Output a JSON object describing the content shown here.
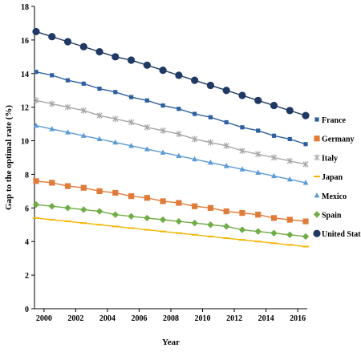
{
  "chart_data": {
    "type": "line",
    "xlabel": "Year",
    "ylabel": "Gap  to the optimal rate (%)",
    "xlim": [
      1999.4,
      2016.6
    ],
    "ylim": [
      0,
      18
    ],
    "x_ticks": [
      2000,
      2002,
      2004,
      2006,
      2008,
      2010,
      2012,
      2014,
      2016
    ],
    "x_tick_labels": [
      "2000",
      "2002",
      "2004",
      "2006",
      "2008",
      "2010",
      "2012",
      "2014",
      "2016"
    ],
    "y_ticks": [
      0,
      2,
      4,
      6,
      8,
      10,
      12,
      14,
      16,
      18
    ],
    "y_tick_labels": [
      "0",
      "2",
      "4",
      "6",
      "8",
      "10",
      "12",
      "14",
      "16",
      "18"
    ],
    "x": [
      1999.5,
      2000.5,
      2001.5,
      2002.5,
      2003.5,
      2004.5,
      2005.5,
      2006.5,
      2007.5,
      2008.5,
      2009.5,
      2010.5,
      2011.5,
      2012.5,
      2013.5,
      2014.5,
      2015.5,
      2016.5
    ],
    "legend_position": "right",
    "grid": false,
    "series": [
      {
        "name": "France",
        "color": "#2e5f9e",
        "marker": "square-small",
        "values": [
          14.1,
          13.9,
          13.6,
          13.4,
          13.1,
          12.9,
          12.6,
          12.4,
          12.1,
          11.9,
          11.6,
          11.4,
          11.1,
          10.8,
          10.6,
          10.3,
          10.1,
          9.8
        ]
      },
      {
        "name": "Germany",
        "color": "#e07b39",
        "marker": "square",
        "values": [
          7.6,
          7.5,
          7.3,
          7.2,
          7.0,
          6.9,
          6.7,
          6.6,
          6.4,
          6.3,
          6.1,
          6.0,
          5.8,
          5.7,
          5.6,
          5.4,
          5.3,
          5.2
        ]
      },
      {
        "name": "Italy",
        "color": "#a6a6a6",
        "marker": "asterisk",
        "values": [
          12.4,
          12.2,
          12.0,
          11.8,
          11.5,
          11.3,
          11.1,
          10.8,
          10.6,
          10.4,
          10.1,
          9.9,
          9.7,
          9.4,
          9.2,
          9.0,
          8.8,
          8.6
        ]
      },
      {
        "name": "Japan",
        "color": "#f2b705",
        "marker": "dash",
        "values": [
          5.4,
          5.3,
          5.2,
          5.1,
          5.0,
          4.9,
          4.8,
          4.7,
          4.6,
          4.5,
          4.4,
          4.3,
          4.2,
          4.1,
          4.0,
          3.9,
          3.8,
          3.7
        ]
      },
      {
        "name": "Mexico",
        "color": "#5b9bd5",
        "marker": "triangle",
        "values": [
          10.9,
          10.7,
          10.5,
          10.3,
          10.1,
          9.9,
          9.7,
          9.5,
          9.3,
          9.1,
          8.9,
          8.7,
          8.5,
          8.3,
          8.1,
          7.9,
          7.7,
          7.5
        ]
      },
      {
        "name": "Spain",
        "color": "#70ad47",
        "marker": "diamond",
        "values": [
          6.2,
          6.1,
          6.0,
          5.9,
          5.8,
          5.6,
          5.5,
          5.4,
          5.3,
          5.2,
          5.1,
          5.0,
          4.9,
          4.7,
          4.6,
          4.5,
          4.4,
          4.3
        ]
      },
      {
        "name": "United States",
        "color": "#1f3864",
        "marker": "circle",
        "values": [
          16.5,
          16.2,
          15.9,
          15.6,
          15.3,
          15.0,
          14.8,
          14.5,
          14.2,
          13.9,
          13.6,
          13.3,
          13.0,
          12.7,
          12.4,
          12.1,
          11.8,
          11.5
        ]
      }
    ]
  }
}
